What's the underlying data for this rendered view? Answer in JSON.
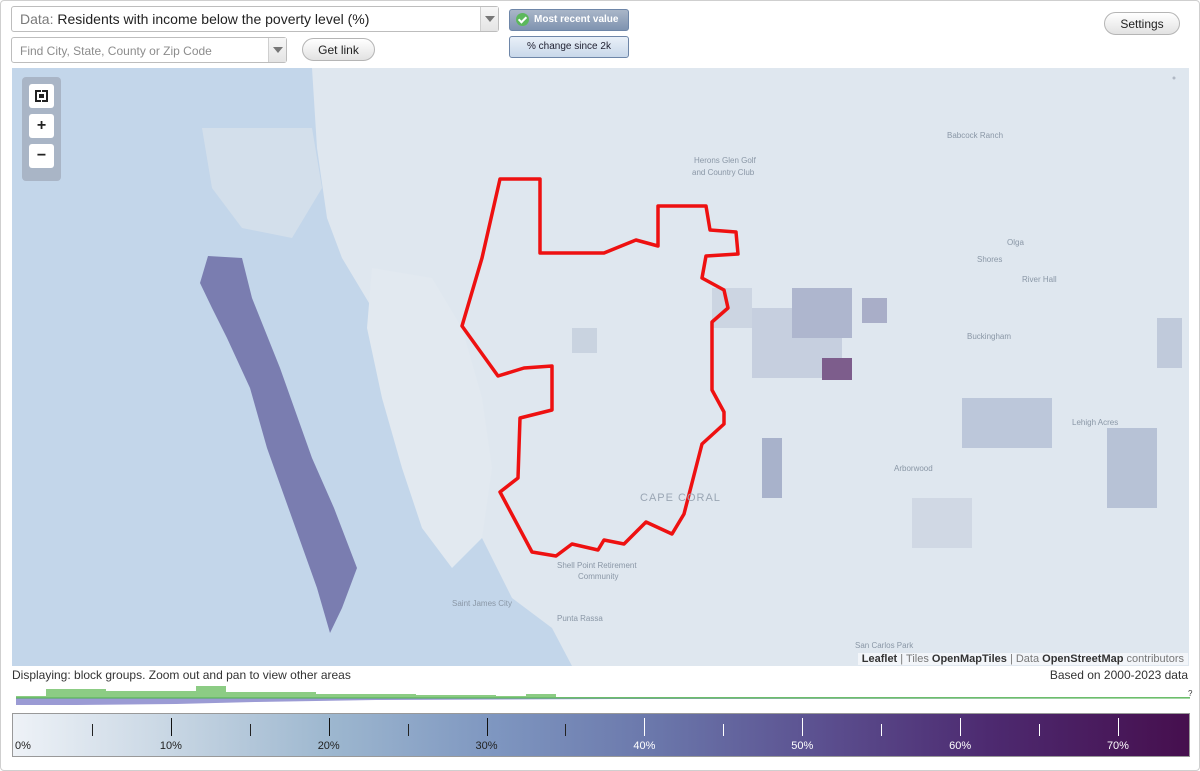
{
  "controls": {
    "data_label": "Data:",
    "data_value": "Residents with income below the poverty level (%)",
    "search_placeholder": "Find City, State, County or Zip Code",
    "get_link": "Get link",
    "settings": "Settings",
    "mode_selected": "Most recent value",
    "mode_other": "% change since 2k"
  },
  "map": {
    "labels": {
      "babcock_ranch": "Babcock Ranch",
      "herons_glen": "Herons Glen Golf",
      "country_club": "and Country Club",
      "olga": "Olga",
      "shores": "Shores",
      "river_hall": "River Hall",
      "buckingham": "Buckingham",
      "lehigh_acres": "Lehigh Acres",
      "arborwood": "Arborwood",
      "cape_coral": "CAPE CORAL",
      "shell_point_1": "Shell Point Retirement",
      "shell_point_2": "Community",
      "saint_james_city": "Saint James City",
      "punta_rassa": "Punta Rassa",
      "san_carlos_park": "San Carlos Park"
    },
    "highlight_color": "#ee1111",
    "attribution": {
      "leaflet": "Leaflet",
      "sep1": "| Tiles",
      "tiles": "OpenMapTiles",
      "sep2": "| Data",
      "osm": "OpenStreetMap",
      "contrib": "contributors"
    }
  },
  "zoom": {
    "fullscreen_icon": "fullscreen-icon",
    "zoom_in": "+",
    "zoom_out": "−"
  },
  "status": "Displaying: block groups. Zoom out and pan to view other areas",
  "based_on": "Based on 2000-2023 data",
  "histogram": {
    "unknown_marker": "?",
    "colors": {
      "top": "#8ccc84",
      "bottom": "#9b9bd4"
    }
  },
  "legend": {
    "min": 0,
    "max": 74.5,
    "ticks": [
      {
        "value": 0,
        "label": "0%"
      },
      {
        "value": 10,
        "label": "10%"
      },
      {
        "value": 20,
        "label": "20%"
      },
      {
        "value": 30,
        "label": "30%"
      },
      {
        "value": 40,
        "label": "40%"
      },
      {
        "value": 50,
        "label": "50%"
      },
      {
        "value": 60,
        "label": "60%"
      },
      {
        "value": 70,
        "label": "70%"
      }
    ],
    "minor_ticks": [
      5,
      15,
      25,
      35,
      45,
      55,
      65
    ]
  }
}
